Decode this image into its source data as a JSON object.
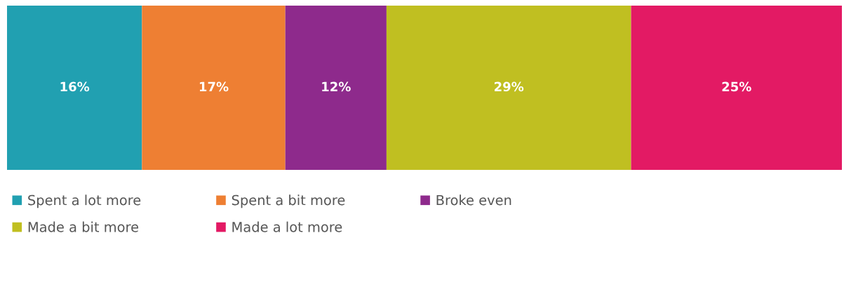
{
  "chart_data": {
    "type": "bar",
    "orientation": "horizontal",
    "stacked": true,
    "categories": [
      null
    ],
    "series": [
      {
        "name": "Spent a lot more",
        "color": "#21a0b1",
        "values": [
          16
        ],
        "value_labels": [
          "16%"
        ]
      },
      {
        "name": "Spent a bit more",
        "color": "#ee7f33",
        "values": [
          17
        ],
        "value_labels": [
          "17%"
        ]
      },
      {
        "name": "Broke even",
        "color": "#8e2a8c",
        "values": [
          12
        ],
        "value_labels": [
          "12%"
        ]
      },
      {
        "name": "Made a bit more",
        "color": "#c0bf21",
        "values": [
          29
        ],
        "value_labels": [
          "29%"
        ]
      },
      {
        "name": "Made a lot more",
        "color": "#e31a64",
        "values": [
          25
        ],
        "value_labels": [
          "25%"
        ]
      }
    ],
    "legend": "bottom",
    "tick_labels": false
  }
}
